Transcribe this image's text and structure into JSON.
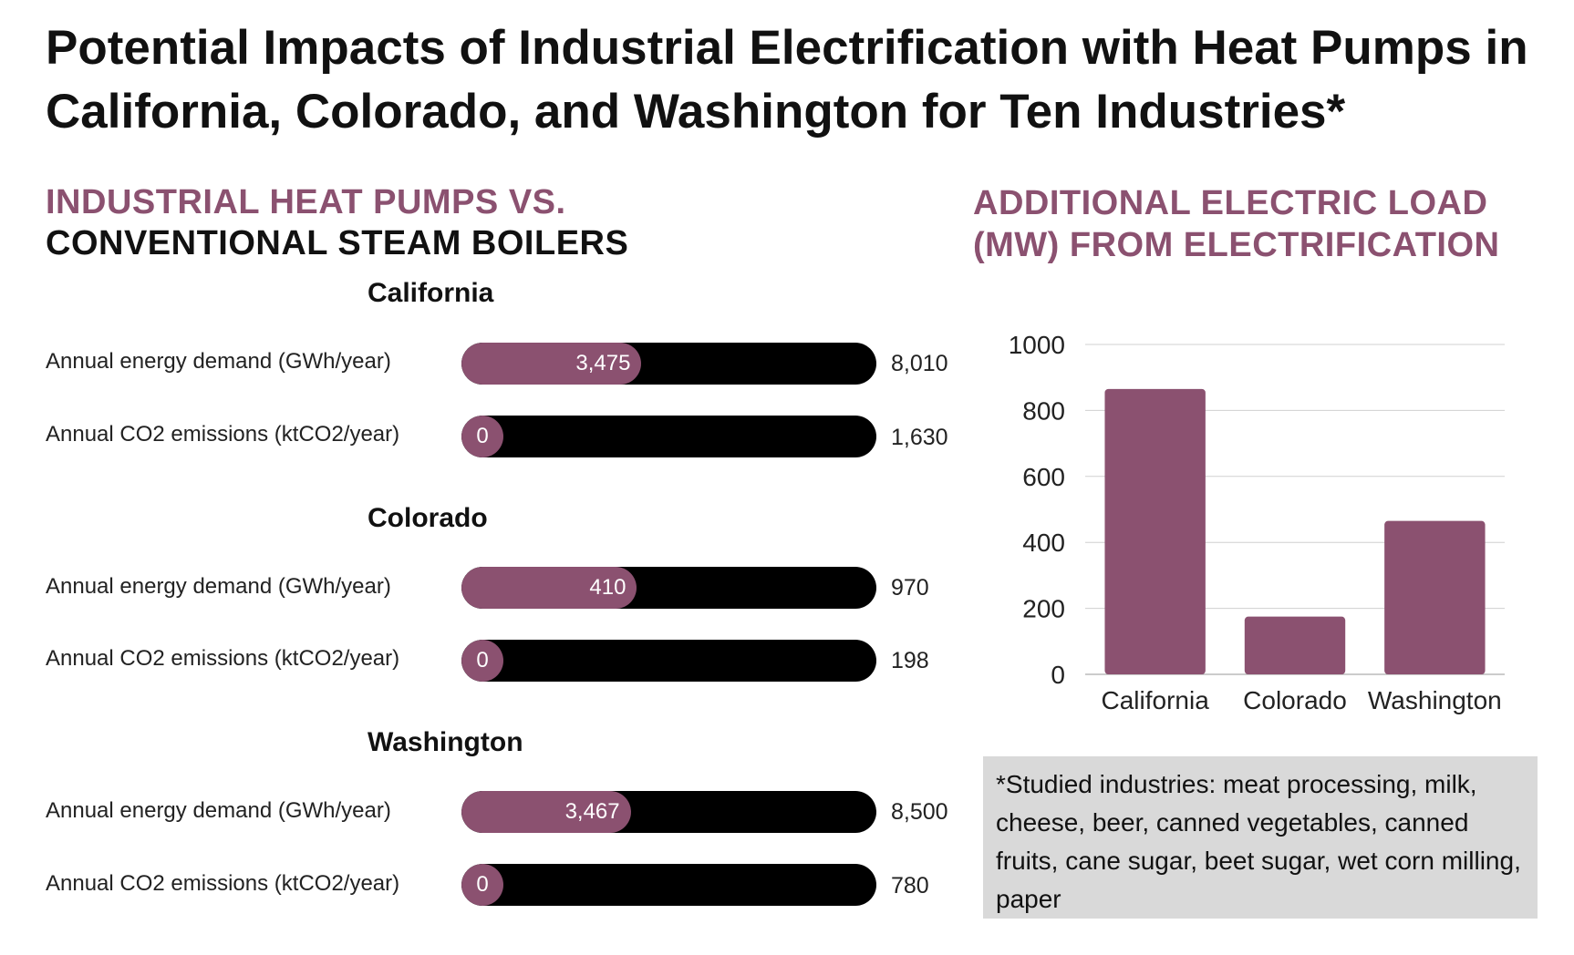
{
  "title": "Potential Impacts of Industrial Electrification with Heat Pumps in California, Colorado, and Washington for Ten Industries*",
  "left_heading": {
    "line1": "INDUSTRIAL HEAT PUMPS VS.",
    "line2": "CONVENTIONAL STEAM BOILERS"
  },
  "right_heading": {
    "line1": "ADDITIONAL ELECTRIC LOAD",
    "line2": "(MW) FROM ELECTRIFICATION"
  },
  "colors": {
    "accent": "#8b5170",
    "track": "#000000",
    "note_bg": "#d9d9d9",
    "grid": "#d0d0d0"
  },
  "states": [
    {
      "name": "California",
      "metrics": [
        {
          "label": "Annual energy demand (GWh/year)",
          "value": "3,475",
          "total": "8,010",
          "fraction": 0.434
        },
        {
          "label": "Annual CO2 emissions (ktCO2/year)",
          "value": "0",
          "total": "1,630",
          "fraction": 0
        }
      ]
    },
    {
      "name": "Colorado",
      "metrics": [
        {
          "label": "Annual energy demand (GWh/year)",
          "value": "410",
          "total": "970",
          "fraction": 0.423
        },
        {
          "label": "Annual CO2 emissions (ktCO2/year)",
          "value": "0",
          "total": "198",
          "fraction": 0
        }
      ]
    },
    {
      "name": "Washington",
      "metrics": [
        {
          "label": "Annual energy demand (GWh/year)",
          "value": "3,467",
          "total": "8,500",
          "fraction": 0.408
        },
        {
          "label": "Annual CO2 emissions (ktCO2/year)",
          "value": "0",
          "total": "780",
          "fraction": 0
        }
      ]
    }
  ],
  "chart_data": {
    "type": "bar",
    "categories": [
      "California",
      "Colorado",
      "Washington"
    ],
    "values": [
      865,
      175,
      465
    ],
    "ylim": [
      0,
      1000
    ],
    "yticks": [
      "0",
      "200",
      "400",
      "600",
      "800",
      "1000"
    ],
    "grid": true
  },
  "note": "*Studied industries: meat processing, milk, cheese, beer, canned vegetables, canned fruits, cane sugar, beet sugar, wet corn milling, paper"
}
